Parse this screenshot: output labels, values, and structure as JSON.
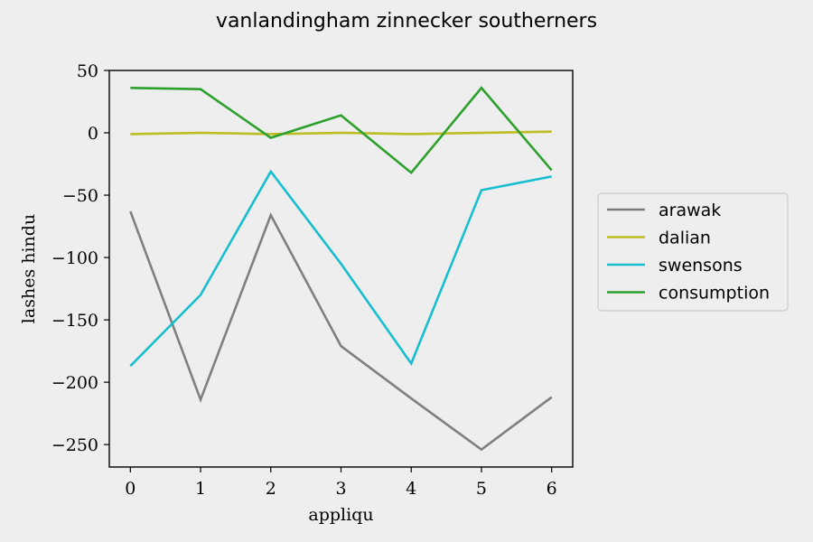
{
  "chart_data": {
    "type": "line",
    "title": "vanlandingham zinnecker southerners",
    "xlabel": "appliqu",
    "ylabel": "lashes hindu",
    "x": [
      0,
      1,
      2,
      3,
      4,
      5,
      6
    ],
    "xlim": [
      -0.3,
      6.3
    ],
    "ylim": [
      -268,
      50
    ],
    "xticks": [
      0,
      1,
      2,
      3,
      4,
      5,
      6
    ],
    "yticks": [
      50,
      0,
      -50,
      -100,
      -150,
      -200,
      -250
    ],
    "ytick_labels": [
      "50",
      "0",
      "−50",
      "−100",
      "−150",
      "−200",
      "−250"
    ],
    "grid": false,
    "legend_position": "right, outside plot area",
    "series": [
      {
        "name": "arawak",
        "color": "#7f7f7f",
        "values": [
          -63,
          -214,
          -66,
          -171,
          -213,
          -254,
          -212
        ]
      },
      {
        "name": "dalian",
        "color": "#bcbd22",
        "values": [
          -1,
          0,
          -1,
          0,
          -1,
          0,
          1
        ]
      },
      {
        "name": "swensons",
        "color": "#17becf",
        "values": [
          -187,
          -130,
          -31,
          -105,
          -185,
          -46,
          -35
        ]
      },
      {
        "name": "consumption",
        "color": "#2ca02c",
        "values": [
          36,
          35,
          -4,
          14,
          -32,
          36,
          -30
        ]
      }
    ]
  }
}
